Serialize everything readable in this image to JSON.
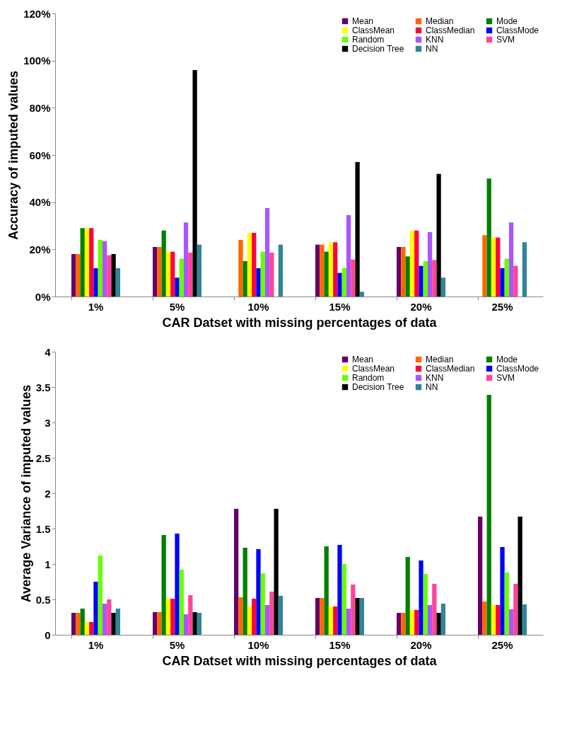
{
  "chart_data": [
    {
      "type": "bar",
      "xlabel": "CAR Datset with missing percentages of data",
      "ylabel": "Accuracy of imputed values",
      "categories": [
        "1%",
        "5%",
        "10%",
        "15%",
        "20%",
        "25%"
      ],
      "ylim": [
        0,
        120
      ],
      "yticks": [
        {
          "value": 0,
          "label": "0%"
        },
        {
          "value": 20,
          "label": "20%"
        },
        {
          "value": 40,
          "label": "40%"
        },
        {
          "value": 60,
          "label": "60%"
        },
        {
          "value": 80,
          "label": "80%"
        },
        {
          "value": 100,
          "label": "100%"
        },
        {
          "value": 120,
          "label": "120%"
        }
      ],
      "legend": "top right",
      "grid": false,
      "series": [
        {
          "name": "Mean",
          "color": "#660066",
          "values": [
            18,
            21,
            null,
            22,
            21,
            null
          ]
        },
        {
          "name": "Median",
          "color": "#ff6600",
          "values": [
            18,
            21,
            24,
            22,
            21,
            26
          ]
        },
        {
          "name": "Mode",
          "color": "#008000",
          "values": [
            29,
            28,
            15,
            19,
            17,
            50
          ]
        },
        {
          "name": "ClassMean",
          "color": "#ffff00",
          "values": [
            29,
            19,
            27,
            23,
            28,
            25
          ]
        },
        {
          "name": "ClassMedian",
          "color": "#ff0040",
          "values": [
            29,
            19,
            27,
            23,
            28,
            25
          ]
        },
        {
          "name": "ClassMode",
          "color": "#0000ff",
          "values": [
            12,
            8,
            12,
            10,
            13,
            12
          ]
        },
        {
          "name": "Random",
          "color": "#66ff00",
          "values": [
            24,
            16,
            19,
            12,
            15,
            16
          ]
        },
        {
          "name": "KNN",
          "color": "#aa55ff",
          "values": [
            23.5,
            31.4,
            37.5,
            34.5,
            27.3,
            31.4
          ]
        },
        {
          "name": "SVM",
          "color": "#ff4499",
          "values": [
            17.5,
            18.6,
            18.6,
            15.7,
            15.5,
            13
          ]
        },
        {
          "name": "Decision Tree",
          "color": "#000000",
          "values": [
            18,
            96,
            null,
            57,
            52,
            null
          ]
        },
        {
          "name": "NN",
          "color": "#31849b",
          "values": [
            12,
            22,
            22,
            2,
            8,
            23
          ]
        }
      ]
    },
    {
      "type": "bar",
      "xlabel": "CAR Datset with missing percentages of data",
      "ylabel": "Average Variance of imputed values",
      "categories": [
        "1%",
        "5%",
        "10%",
        "15%",
        "20%",
        "25%"
      ],
      "ylim": [
        0,
        4
      ],
      "yticks": [
        0,
        0.5,
        1,
        1.5,
        2,
        2.5,
        3,
        3.5,
        4
      ],
      "legend": "top right",
      "grid": false,
      "series": [
        {
          "name": "Mean",
          "color": "#660066",
          "values": [
            0.31,
            0.32,
            1.78,
            0.52,
            0.31,
            1.67
          ]
        },
        {
          "name": "Median",
          "color": "#ff6600",
          "values": [
            0.31,
            0.32,
            0.53,
            0.52,
            0.31,
            0.47
          ]
        },
        {
          "name": "Mode",
          "color": "#008000",
          "values": [
            0.37,
            1.41,
            1.23,
            1.25,
            1.1,
            3.39
          ]
        },
        {
          "name": "ClassMean",
          "color": "#ffff00",
          "values": [
            0.18,
            0.51,
            0.4,
            0.4,
            0.35,
            0.42
          ]
        },
        {
          "name": "ClassMedian",
          "color": "#ff0040",
          "values": [
            0.18,
            0.51,
            0.51,
            0.4,
            0.35,
            0.42
          ]
        },
        {
          "name": "ClassMode",
          "color": "#0000ff",
          "values": [
            0.75,
            1.43,
            1.21,
            1.27,
            1.05,
            1.24
          ]
        },
        {
          "name": "Random",
          "color": "#66ff00",
          "values": [
            1.12,
            0.92,
            0.87,
            1.0,
            0.86,
            0.88
          ]
        },
        {
          "name": "KNN",
          "color": "#aa55ff",
          "values": [
            0.44,
            0.29,
            0.42,
            0.37,
            0.42,
            0.36
          ]
        },
        {
          "name": "SVM",
          "color": "#ff4499",
          "values": [
            0.5,
            0.56,
            0.61,
            0.71,
            0.72,
            0.72
          ]
        },
        {
          "name": "Decision Tree",
          "color": "#000000",
          "values": [
            0.31,
            0.32,
            1.78,
            0.52,
            0.31,
            1.67
          ]
        },
        {
          "name": "NN",
          "color": "#31849b",
          "values": [
            0.37,
            0.31,
            0.55,
            0.52,
            0.44,
            0.43
          ]
        }
      ]
    }
  ]
}
